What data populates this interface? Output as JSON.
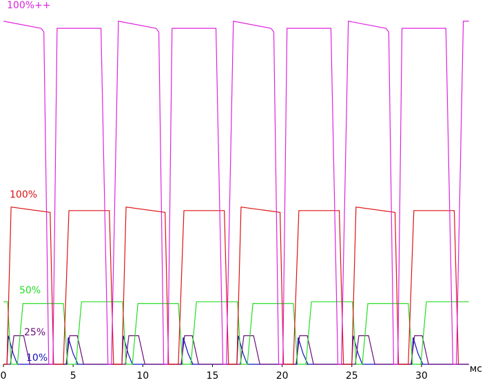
{
  "chart_data": {
    "type": "line",
    "x_label": "мс",
    "xlim": [
      0,
      34.7
    ],
    "xticks": [
      0,
      5,
      10,
      15,
      20,
      25,
      30
    ],
    "ylim": [
      0,
      100
    ],
    "series": [
      {
        "name": "10%",
        "color": "#1010c0",
        "x": [
          0,
          0.25,
          0.35,
          0.7,
          1.0,
          4.55,
          4.65,
          5.0,
          5.35,
          8.5,
          8.6,
          8.95,
          9.25,
          12.8,
          12.9,
          13.25,
          13.6,
          16.75,
          16.85,
          17.2,
          17.5,
          21.05,
          21.15,
          21.5,
          21.85,
          25.0,
          25.1,
          25.45,
          25.75,
          29.3,
          29.4,
          29.75,
          30.1,
          33.4
        ],
        "values": [
          0,
          0,
          8,
          3,
          0,
          0,
          7.5,
          3,
          0,
          0,
          8,
          3,
          0,
          0,
          7.5,
          3,
          0,
          0,
          8,
          3,
          0,
          0,
          7.5,
          3,
          0,
          0,
          8,
          3,
          0,
          0,
          7.5,
          3,
          0,
          0
        ]
      },
      {
        "name": "25%",
        "color": "#6a0a7a",
        "x": [
          0,
          0.5,
          0.75,
          1.45,
          1.9,
          4.5,
          4.75,
          5.3,
          5.75,
          8.75,
          9.0,
          9.7,
          10.15,
          12.75,
          13.0,
          13.55,
          14.0,
          17.0,
          17.25,
          17.95,
          18.4,
          21.0,
          21.25,
          21.8,
          22.25,
          25.25,
          25.5,
          26.2,
          26.65,
          29.25,
          29.5,
          30.05,
          30.5,
          33.4
        ],
        "values": [
          0,
          0,
          8,
          8,
          0,
          0,
          8,
          8,
          0,
          0,
          8,
          8,
          0,
          0,
          8,
          8,
          0,
          0,
          8,
          8,
          0,
          0,
          8,
          8,
          0,
          0,
          8,
          8,
          0,
          0,
          8,
          8,
          0,
          0
        ]
      },
      {
        "name": "50%",
        "color": "#22dd22",
        "x": [
          0,
          0.3,
          0.55,
          1.0,
          1.4,
          4.3,
          4.6,
          5.2,
          5.6,
          8.25,
          8.55,
          8.8,
          9.25,
          9.65,
          12.55,
          12.85,
          13.45,
          13.85,
          16.5,
          16.8,
          17.05,
          17.5,
          17.9,
          20.8,
          21.1,
          21.7,
          22.1,
          24.75,
          25.05,
          25.3,
          25.75,
          26.15,
          29.05,
          29.35,
          29.95,
          30.35,
          33.4
        ],
        "values": [
          17.5,
          17.5,
          0,
          0,
          17,
          17,
          0,
          0,
          17.5,
          17.5,
          17.5,
          0,
          0,
          17,
          17,
          0,
          0,
          17.5,
          17.5,
          17.5,
          0,
          0,
          17,
          17,
          0,
          0,
          17.5,
          17.5,
          17.5,
          0,
          0,
          17,
          17,
          0,
          0,
          17.5,
          17.5
        ]
      },
      {
        "name": "100%",
        "color": "#dd1111",
        "x": [
          0,
          0.25,
          0.55,
          3.35,
          3.6,
          4.3,
          4.7,
          7.6,
          7.9,
          8.5,
          8.8,
          11.6,
          11.85,
          12.55,
          12.95,
          15.85,
          16.15,
          16.75,
          17.05,
          19.85,
          20.1,
          20.8,
          21.2,
          24.1,
          24.4,
          25.0,
          25.3,
          28.1,
          28.35,
          29.05,
          29.45,
          32.35,
          32.65
        ],
        "values": [
          0,
          0,
          44,
          42.5,
          0,
          0,
          43,
          43,
          0,
          0,
          44,
          42.5,
          0,
          0,
          43,
          43,
          0,
          0,
          44,
          42.5,
          0,
          0,
          43,
          43,
          0,
          0,
          44,
          42.5,
          0,
          0,
          43,
          43,
          0
        ]
      },
      {
        "name": "100%++",
        "color": "#dd22dd",
        "x": [
          0,
          2.7,
          2.9,
          3.25,
          3.55,
          3.85,
          7.0,
          7.5,
          7.75,
          8.25,
          10.95,
          11.15,
          11.5,
          11.8,
          12.1,
          15.25,
          15.75,
          16.0,
          16.5,
          19.2,
          19.4,
          19.75,
          20.05,
          20.35,
          23.5,
          24.0,
          24.25,
          24.75,
          27.45,
          27.65,
          28.0,
          28.3,
          28.6,
          31.75,
          32.25,
          32.5,
          33.0,
          33.4
        ],
        "values": [
          96,
          94,
          93,
          0,
          0,
          94,
          94,
          0,
          0,
          96,
          94,
          93,
          0,
          0,
          94,
          94,
          0,
          0,
          96,
          94,
          93,
          0,
          0,
          94,
          94,
          0,
          0,
          96,
          94,
          93,
          0,
          0,
          94,
          94,
          0,
          0,
          96,
          96
        ]
      }
    ]
  }
}
